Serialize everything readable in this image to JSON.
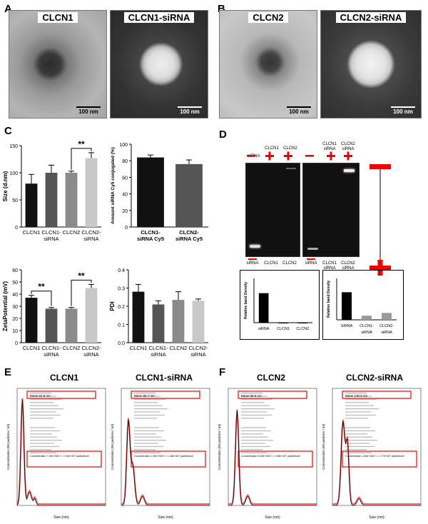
{
  "panels": {
    "A": "A",
    "B": "B",
    "C": "C",
    "D": "D",
    "E": "E",
    "F": "F"
  },
  "tem": [
    {
      "label": "CLCN1",
      "scale": "100 nm"
    },
    {
      "label": "CLCN1-siRNA",
      "scale": "100 nm"
    },
    {
      "label": "CLCN2",
      "scale": "100 nm"
    },
    {
      "label": "CLCN2-siRNA",
      "scale": "100 nm"
    }
  ],
  "chart_data": [
    {
      "type": "bar",
      "categories": [
        "CLCN1",
        "CLCN1-siRNA",
        "CLCN2",
        "CLCN2-siRNA"
      ],
      "values": [
        80,
        100,
        100,
        127
      ],
      "errors": [
        17,
        14,
        3,
        10
      ],
      "ylabel": "Size (d.nm)",
      "ylim": [
        0,
        150
      ],
      "yticks": [
        0,
        50,
        100,
        150
      ],
      "significance": [
        {
          "from": 2,
          "to": 3,
          "label": "**"
        }
      ],
      "colors": [
        "#111111",
        "#555555",
        "#8a8a8a",
        "#c8c8c8"
      ]
    },
    {
      "type": "bar",
      "categories": [
        "CLCN1-siRNA Cy5",
        "CLCN2-siRNA Cy5"
      ],
      "values": [
        84,
        76
      ],
      "errors": [
        3,
        5
      ],
      "ylabel": "Amount siRNA Cy5 conjugated (%)",
      "ylim": [
        0,
        100
      ],
      "yticks": [
        0,
        20,
        40,
        60,
        80,
        100
      ],
      "colors": [
        "#111111",
        "#555555"
      ]
    },
    {
      "type": "bar",
      "categories": [
        "CLCN1",
        "CLCN1-siRNA",
        "CLCN2",
        "CLCN2-siRNA"
      ],
      "values": [
        37,
        28,
        28,
        45
      ],
      "errors": [
        2,
        1,
        1,
        3
      ],
      "ylabel": "ZetaPotential (mV)",
      "ylim": [
        0,
        60
      ],
      "yticks": [
        0,
        10,
        20,
        30,
        40,
        50,
        60
      ],
      "significance": [
        {
          "from": 0,
          "to": 1,
          "label": "**"
        },
        {
          "from": 2,
          "to": 3,
          "label": "**"
        }
      ],
      "colors": [
        "#111111",
        "#555555",
        "#8a8a8a",
        "#c8c8c8"
      ]
    },
    {
      "type": "bar",
      "categories": [
        "CLCN1",
        "CLCN1-siRNA",
        "CLCN2",
        "CLCN2-siRNA"
      ],
      "values": [
        0.28,
        0.21,
        0.235,
        0.23
      ],
      "errors": [
        0.04,
        0.02,
        0.045,
        0.01
      ],
      "ylabel": "PDI",
      "ylim": [
        0,
        0.4
      ],
      "yticks": [
        0.0,
        0.1,
        0.2,
        0.3,
        0.4
      ],
      "colors": [
        "#111111",
        "#555555",
        "#8a8a8a",
        "#c8c8c8"
      ]
    },
    {
      "type": "bar",
      "categories": [
        "siRNA",
        "CLCN1",
        "CLCN2"
      ],
      "values": [
        1.0,
        0.0,
        0.0
      ],
      "ylabel": "Relative band Density",
      "ylim": [
        0,
        1.5
      ],
      "colors": [
        "#000000",
        "#000000",
        "#000000"
      ]
    },
    {
      "type": "bar",
      "categories": [
        "SiRNA",
        "CLCN1-siRNA",
        "CLCN2-siRNA"
      ],
      "values": [
        1.0,
        0.15,
        0.25
      ],
      "ylabel": "Relative band Density",
      "ylim": [
        0,
        1.5
      ],
      "colors": [
        "#000000",
        "#999999",
        "#999999"
      ]
    }
  ],
  "gel": {
    "left_top": [
      {
        "label": "siRNA",
        "sign": "minus"
      },
      {
        "label": "CLCN1",
        "sign": "plus"
      },
      {
        "label": "CLCN2",
        "sign": "plus"
      }
    ],
    "right_top": [
      {
        "label": "",
        "sign": "minus"
      },
      {
        "label": "CLCN1 siRNA",
        "sign": "plus"
      },
      {
        "label": "CLCN2 siRNA",
        "sign": "plus"
      }
    ],
    "left_bottom": [
      "siRNA",
      "CLCN1",
      "CLCN2"
    ],
    "right_bottom": [
      "siRNA",
      "CLCN1 siRNA",
      "CLCN2 siRNA"
    ]
  },
  "nta": [
    {
      "title": "CLCN1",
      "mean_row": "Mean   84.8 nm",
      "conc_row": "Concentration   7.29e+008 +/- 2.30e+007 particles/ml"
    },
    {
      "title": "CLCN1-siRNA",
      "mean_row": "Mean   95.7 nm",
      "conc_row": "Concentration   1.50e+008 +/- 1.48e+007 particles/ml"
    },
    {
      "title": "CLCN2",
      "mean_row": "Mean   98.6 nm",
      "conc_row": "Concentration   5.05e+008 +/- 2.08e+007 particles/ml"
    },
    {
      "title": "CLCN2-siRNA",
      "mean_row": "Mean   130.9 nm",
      "conc_row": "Concentration   1.80e+008 +/- 1.77e+007 particles/ml"
    }
  ],
  "nta_axes": {
    "xlabel": "Size (nm)",
    "ylabel": "Concentration (E6 particles / ml)"
  }
}
